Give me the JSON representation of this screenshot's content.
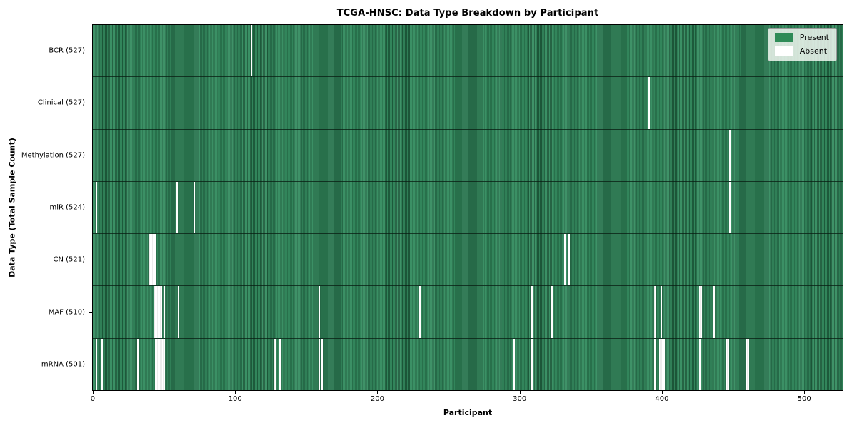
{
  "chart_data": {
    "type": "heatmap",
    "title": "TCGA-HNSC: Data Type Breakdown by Participant",
    "xlabel": "Participant",
    "ylabel": "Data Type (Total Sample Count)",
    "x_ticks": [
      0,
      100,
      200,
      300,
      400,
      500
    ],
    "total_participants": 528,
    "x_range": [
      -0.5,
      527.5
    ],
    "grid": false,
    "colors": {
      "present": "#2e8b57",
      "present_edge": "#1f5f3e",
      "absent": "#ffffff",
      "spine": "#000000"
    },
    "legend": {
      "position": "upper right",
      "entries": [
        {
          "label": "Present",
          "color": "#2e8b57"
        },
        {
          "label": "Absent",
          "color": "#ffffff"
        }
      ]
    },
    "rows": [
      {
        "key": "bcr",
        "label": "BCR (527)",
        "data_type": "BCR",
        "sample_count": 527,
        "absent_participants": [
          111
        ]
      },
      {
        "key": "clinical",
        "label": "Clinical (527)",
        "data_type": "Clinical",
        "sample_count": 527,
        "absent_participants": [
          391
        ]
      },
      {
        "key": "methylation",
        "label": "Methylation (527)",
        "data_type": "Methylation",
        "sample_count": 527,
        "absent_participants": [
          448
        ]
      },
      {
        "key": "mir",
        "label": "miR (524)",
        "data_type": "miR",
        "sample_count": 524,
        "absent_participants": [
          2,
          59,
          71,
          448
        ]
      },
      {
        "key": "cn",
        "label": "CN (521)",
        "data_type": "CN",
        "sample_count": 521,
        "absent_participants": [
          39,
          40,
          41,
          42,
          43,
          332,
          335
        ]
      },
      {
        "key": "maf",
        "label": "MAF (510)",
        "data_type": "MAF",
        "sample_count": 510,
        "absent_participants": [
          43,
          44,
          45,
          46,
          47,
          48,
          50,
          60,
          159,
          230,
          309,
          323,
          395,
          396,
          400,
          427,
          428,
          437
        ]
      },
      {
        "key": "mrna",
        "label": "mRNA (501)",
        "data_type": "mRNA",
        "sample_count": 501,
        "absent_participants": [
          2,
          6,
          31,
          44,
          45,
          46,
          47,
          48,
          49,
          50,
          127,
          128,
          131,
          159,
          161,
          296,
          309,
          395,
          399,
          400,
          401,
          402,
          427,
          446,
          447,
          460,
          461
        ]
      }
    ]
  }
}
